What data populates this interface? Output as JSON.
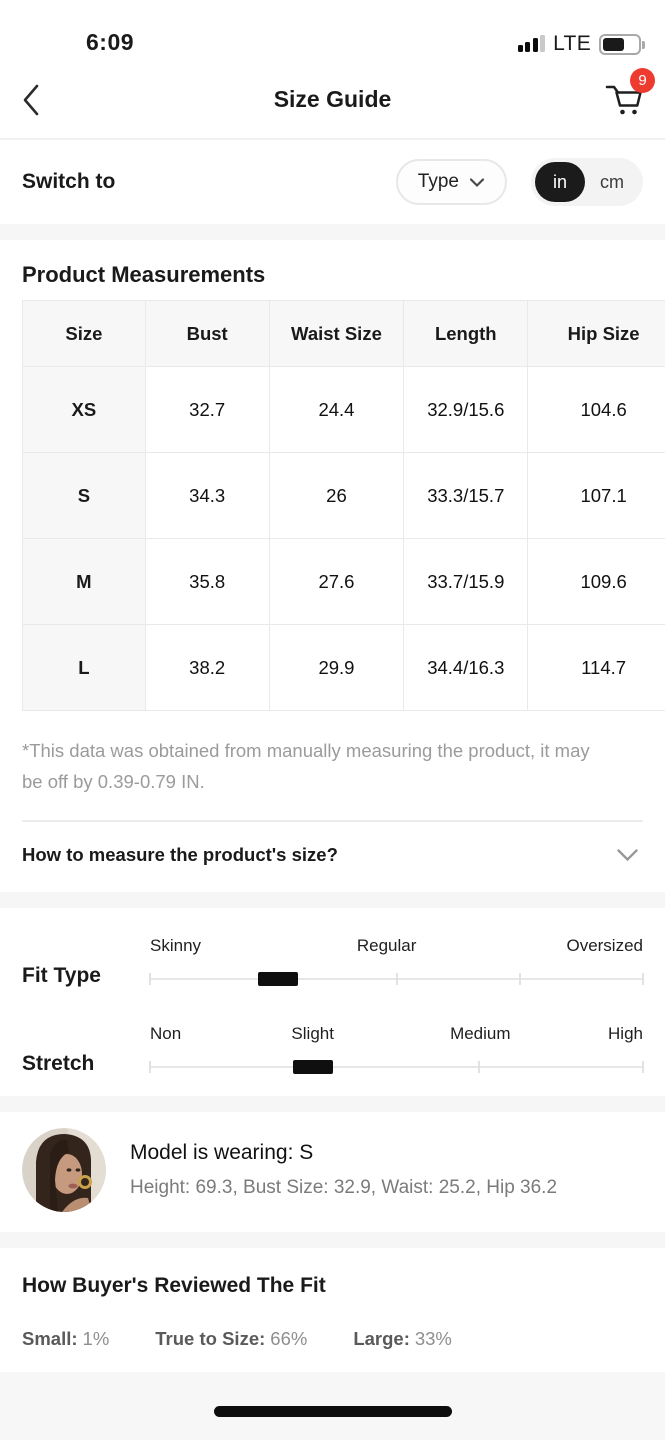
{
  "status_bar": {
    "time": "6:09",
    "network": "LTE",
    "battery_percent": 55,
    "signal_bars_total": 4,
    "signal_bars_filled": 3
  },
  "header": {
    "title": "Size Guide",
    "cart_badge": "9"
  },
  "switch_row": {
    "label": "Switch to",
    "type_button": "Type",
    "unit_toggle": {
      "options": [
        "in",
        "cm"
      ],
      "selected": "in"
    }
  },
  "measurements": {
    "title": "Product Measurements",
    "table": {
      "columns": [
        "Size",
        "Bust",
        "Waist Size",
        "Length",
        "Hip Size"
      ],
      "rows": [
        [
          "XS",
          "32.7",
          "24.4",
          "32.9/15.6",
          "104.6"
        ],
        [
          "S",
          "34.3",
          "26",
          "33.3/15.7",
          "107.1"
        ],
        [
          "M",
          "35.8",
          "27.6",
          "33.7/15.9",
          "109.6"
        ],
        [
          "L",
          "38.2",
          "29.9",
          "34.4/16.3",
          "114.7"
        ]
      ]
    },
    "disclaimer": "*This data was obtained from manually measuring the product, it may be off by 0.39-0.79 IN.",
    "how_to_measure_label": "How to measure the product's size?"
  },
  "sliders": [
    {
      "name": "Fit Type",
      "labels": [
        "Skinny",
        "Regular",
        "Oversized"
      ],
      "label_percents": [
        0,
        48,
        100
      ],
      "tick_percents": [
        0,
        25,
        50,
        75,
        100
      ],
      "thumb_percent": 26
    },
    {
      "name": "Stretch",
      "labels": [
        "Non",
        "Slight",
        "Medium",
        "High"
      ],
      "label_percents": [
        0,
        33,
        67,
        100
      ],
      "tick_percents": [
        0,
        33.3,
        66.7,
        100
      ],
      "thumb_percent": 33
    }
  ],
  "model": {
    "wearing": "Model is wearing: S",
    "details": "Height: 69.3,  Bust Size: 32.9,  Waist: 25.2,  Hip 36.2"
  },
  "buyers_fit": {
    "title": "How Buyer's Reviewed The Fit",
    "stats": [
      {
        "label": "Small:",
        "value": "1%"
      },
      {
        "label": "True to Size:",
        "value": "66%"
      },
      {
        "label": "Large:",
        "value": "33%"
      }
    ]
  },
  "colors": {
    "badge_red": "#ee3b30",
    "toggle_dark": "#1b1b1b",
    "section_separator": "#f6f6f6",
    "muted_text": "#9b9b9b",
    "track_gray": "#e7e7e7"
  }
}
